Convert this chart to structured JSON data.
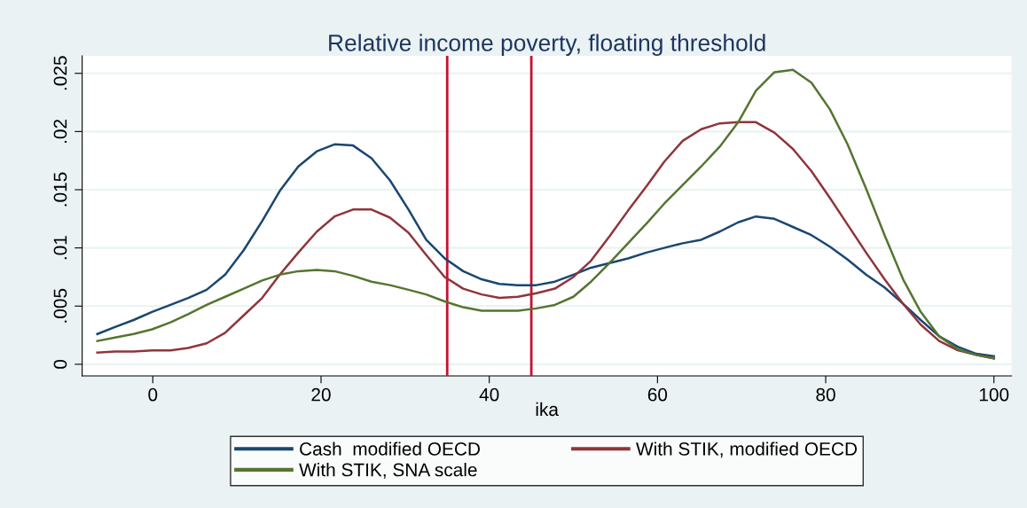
{
  "chart_data": {
    "type": "line",
    "title": "Relative income poverty, floating threshold",
    "xlabel": "ika",
    "x": [
      -6.6,
      -4.5,
      -2.3,
      -0.1,
      2.1,
      4.2,
      6.4,
      8.6,
      10.8,
      13.0,
      15.1,
      17.3,
      19.5,
      21.6,
      23.8,
      26.0,
      28.2,
      30.4,
      32.5,
      34.7,
      36.9,
      39.1,
      41.2,
      43.4,
      45.6,
      47.8,
      50.0,
      52.1,
      54.3,
      56.5,
      58.7,
      60.8,
      63.0,
      65.2,
      67.4,
      69.6,
      71.7,
      73.9,
      76.1,
      78.3,
      80.5,
      82.6,
      84.8,
      87.0,
      89.2,
      91.3,
      93.5,
      95.7,
      97.9,
      100.0
    ],
    "series": [
      {
        "name": "Cash  modified OECD",
        "color": "#1a476f",
        "values": [
          0.0026,
          0.0032,
          0.0038,
          0.0045,
          0.0051,
          0.0057,
          0.0064,
          0.0077,
          0.0098,
          0.0123,
          0.0149,
          0.017,
          0.0183,
          0.0189,
          0.0188,
          0.0177,
          0.0158,
          0.0133,
          0.0107,
          0.0091,
          0.008,
          0.0073,
          0.0069,
          0.0068,
          0.0068,
          0.0071,
          0.0077,
          0.0083,
          0.0087,
          0.0091,
          0.0096,
          0.01,
          0.0104,
          0.0107,
          0.0114,
          0.0122,
          0.0127,
          0.0125,
          0.0118,
          0.0111,
          0.0101,
          0.009,
          0.0077,
          0.0066,
          0.0052,
          0.0038,
          0.0024,
          0.0015,
          0.0009,
          0.0007
        ]
      },
      {
        "name": "With STIK, modified OECD",
        "color": "#90353b",
        "values": [
          0.001,
          0.0011,
          0.0011,
          0.0012,
          0.0012,
          0.0014,
          0.0018,
          0.0027,
          0.0042,
          0.0057,
          0.0077,
          0.0096,
          0.0114,
          0.0127,
          0.0133,
          0.0133,
          0.0126,
          0.0113,
          0.0094,
          0.0075,
          0.0065,
          0.006,
          0.0057,
          0.0058,
          0.0061,
          0.0065,
          0.0075,
          0.0089,
          0.011,
          0.0132,
          0.0153,
          0.0174,
          0.0192,
          0.0202,
          0.0207,
          0.0208,
          0.0208,
          0.0199,
          0.0185,
          0.0166,
          0.0143,
          0.012,
          0.0096,
          0.0073,
          0.0052,
          0.0034,
          0.002,
          0.0012,
          0.0008,
          0.0005
        ]
      },
      {
        "name": "With STIK, SNA scale",
        "color": "#55752f",
        "values": [
          0.002,
          0.0023,
          0.0026,
          0.003,
          0.0036,
          0.0043,
          0.0051,
          0.0058,
          0.0065,
          0.0072,
          0.0077,
          0.008,
          0.0081,
          0.008,
          0.0076,
          0.0071,
          0.0068,
          0.0064,
          0.006,
          0.0054,
          0.0049,
          0.0046,
          0.0046,
          0.0046,
          0.0048,
          0.0051,
          0.0058,
          0.0071,
          0.0087,
          0.0104,
          0.0121,
          0.0138,
          0.0154,
          0.017,
          0.0187,
          0.0208,
          0.0235,
          0.0251,
          0.0253,
          0.0242,
          0.0219,
          0.0189,
          0.0151,
          0.0111,
          0.0073,
          0.0045,
          0.0024,
          0.0013,
          0.0008,
          0.0005
        ]
      }
    ],
    "ref_lines": [
      {
        "axis": "x",
        "value": 35,
        "color": "#c8102e"
      },
      {
        "axis": "x",
        "value": 45,
        "color": "#c8102e"
      }
    ],
    "xlim": [
      -8.4,
      102.1
    ],
    "xticks": [
      0,
      20,
      40,
      60,
      80,
      100
    ],
    "ylim": [
      -0.001,
      0.0265
    ],
    "yticks": [
      0,
      {
        "value": 0.005,
        "label": ".005"
      },
      {
        "value": 0.01,
        "label": ".01"
      },
      {
        "value": 0.015,
        "label": ".015"
      },
      {
        "value": 0.02,
        "label": ".02"
      },
      {
        "value": 0.025,
        "label": ".025"
      }
    ],
    "grid": "y",
    "legend": "bottom",
    "marker": "none",
    "line_style": "solid"
  }
}
